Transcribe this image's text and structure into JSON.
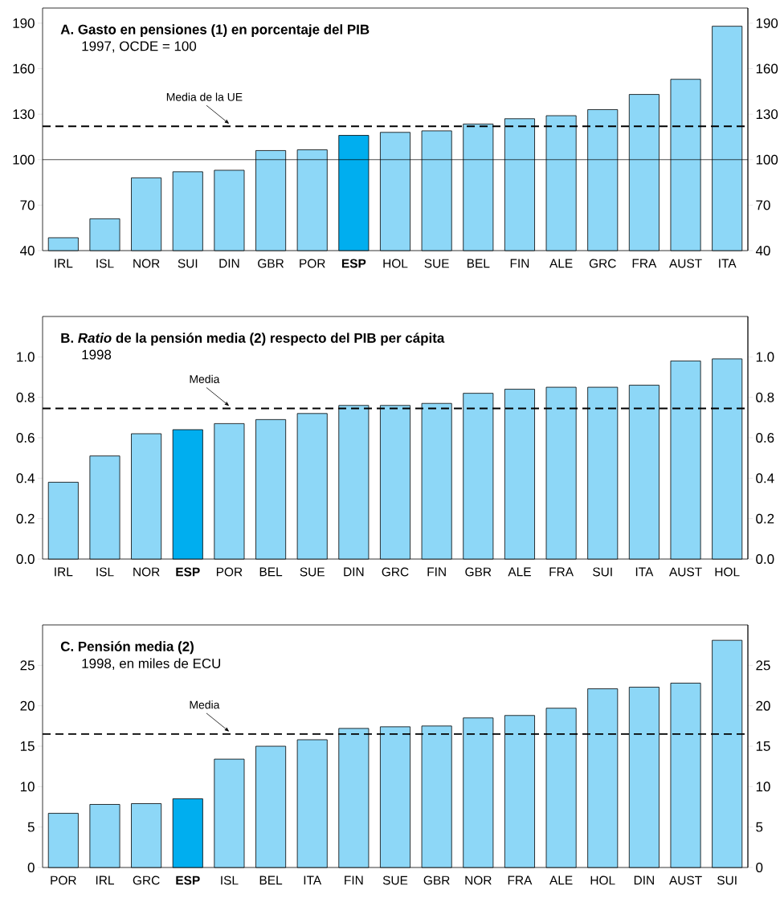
{
  "chart_data": [
    {
      "type": "bar",
      "title": "A. Gasto en pensiones (1) en porcentaje del PIB",
      "subtitle": "1997, OCDE = 100",
      "categories": [
        "IRL",
        "ISL",
        "NOR",
        "SUI",
        "DIN",
        "GBR",
        "POR",
        "**ESP**",
        "HOL",
        "SUE",
        "BEL",
        "FIN",
        "ALE",
        "GRC",
        "FRA",
        "AUST",
        "ITA"
      ],
      "values": [
        48.5,
        61,
        88,
        92,
        93,
        106,
        106.5,
        116,
        118,
        119,
        123.5,
        127,
        129,
        133,
        143,
        153,
        188
      ],
      "colors": [
        "#8dd7f7",
        "#8dd7f7",
        "#8dd7f7",
        "#8dd7f7",
        "#8dd7f7",
        "#8dd7f7",
        "#8dd7f7",
        "#00aeef",
        "#8dd7f7",
        "#8dd7f7",
        "#8dd7f7",
        "#8dd7f7",
        "#8dd7f7",
        "#8dd7f7",
        "#8dd7f7",
        "#8dd7f7",
        "#8dd7f7"
      ],
      "ylim": [
        40,
        200
      ],
      "yticks": [
        40,
        70,
        100,
        130,
        160,
        190
      ],
      "y2lim": [
        40,
        200
      ],
      "y2ticks": [
        40,
        70,
        100,
        130,
        160,
        190
      ],
      "ref_lines": [
        {
          "axis": "y",
          "value": 100,
          "color": "#000000",
          "line_style": "solid"
        },
        {
          "axis": "y",
          "value": 122,
          "label": "Media de la UE",
          "color": "#000000",
          "line_style": "dashed"
        }
      ]
    },
    {
      "type": "bar",
      "title": "B. *Ratio* de la pensión media (2) respecto del PIB per cápita",
      "subtitle": "1998",
      "categories": [
        "IRL",
        "ISL",
        "NOR",
        "**ESP**",
        "POR",
        "BEL",
        "SUE",
        "DIN",
        "GRC",
        "FIN",
        "GBR",
        "ALE",
        "FRA",
        "SUI",
        "ITA",
        "AUST",
        "HOL"
      ],
      "values": [
        0.38,
        0.51,
        0.62,
        0.64,
        0.67,
        0.69,
        0.72,
        0.76,
        0.76,
        0.77,
        0.82,
        0.84,
        0.85,
        0.85,
        0.86,
        0.98,
        0.99
      ],
      "colors": [
        "#8dd7f7",
        "#8dd7f7",
        "#8dd7f7",
        "#00aeef",
        "#8dd7f7",
        "#8dd7f7",
        "#8dd7f7",
        "#8dd7f7",
        "#8dd7f7",
        "#8dd7f7",
        "#8dd7f7",
        "#8dd7f7",
        "#8dd7f7",
        "#8dd7f7",
        "#8dd7f7",
        "#8dd7f7",
        "#8dd7f7"
      ],
      "ylim": [
        0,
        1.2
      ],
      "yticks": [
        {
          "value": 0,
          "label": "0.0"
        },
        0.2,
        0.4,
        0.6,
        0.8,
        {
          "value": 1,
          "label": "1.0"
        }
      ],
      "y2lim": [
        0,
        1.2
      ],
      "y2ticks": [
        {
          "value": 0,
          "label": "0.0"
        },
        0.2,
        0.4,
        0.6,
        0.8,
        {
          "value": 1,
          "label": "1.0"
        }
      ],
      "ref_lines": [
        {
          "axis": "y",
          "value": 0.745,
          "label": "Media",
          "color": "#000000",
          "line_style": "dashed"
        }
      ]
    },
    {
      "type": "bar",
      "title": "C. Pensión media (2)",
      "subtitle": "1998, en miles de ECU",
      "categories": [
        "POR",
        "IRL",
        "GRC",
        "**ESP**",
        "ISL",
        "BEL",
        "ITA",
        "FIN",
        "SUE",
        "GBR",
        "NOR",
        "FRA",
        "ALE",
        "HOL",
        "DIN",
        "AUST",
        "SUI"
      ],
      "values": [
        6.7,
        7.8,
        7.9,
        8.5,
        13.4,
        15.0,
        15.8,
        17.2,
        17.4,
        17.5,
        18.5,
        18.8,
        19.7,
        22.1,
        22.3,
        22.8,
        28.1
      ],
      "colors": [
        "#8dd7f7",
        "#8dd7f7",
        "#8dd7f7",
        "#00aeef",
        "#8dd7f7",
        "#8dd7f7",
        "#8dd7f7",
        "#8dd7f7",
        "#8dd7f7",
        "#8dd7f7",
        "#8dd7f7",
        "#8dd7f7",
        "#8dd7f7",
        "#8dd7f7",
        "#8dd7f7",
        "#8dd7f7",
        "#8dd7f7"
      ],
      "ylim": [
        0,
        30
      ],
      "yticks": [
        0,
        5,
        10,
        15,
        20,
        25
      ],
      "y2lim": [
        0,
        30
      ],
      "y2ticks": [
        0,
        5,
        10,
        15,
        20,
        25
      ],
      "ref_lines": [
        {
          "axis": "y",
          "value": 16.5,
          "label": "Media",
          "color": "#000000",
          "line_style": "dashed"
        }
      ]
    }
  ]
}
